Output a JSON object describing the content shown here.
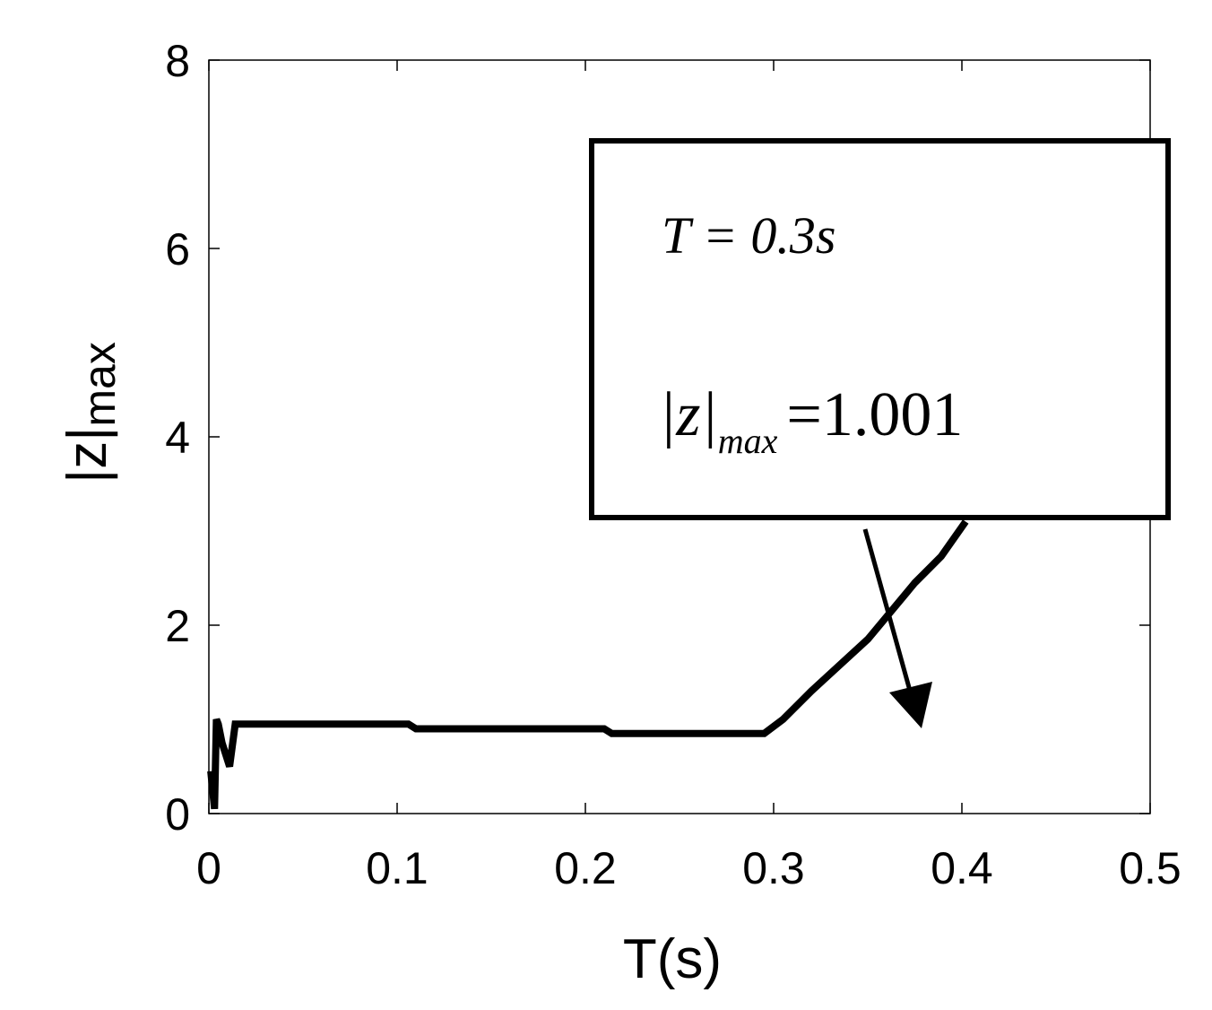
{
  "chart_data": {
    "type": "line",
    "xlabel": "T(s)",
    "ylabel": {
      "base": "|z|",
      "sub": "max"
    },
    "annotation": {
      "line1": "T = 0.3s",
      "line2": {
        "base": "|z|",
        "sub": "max",
        "rest": "=1.001"
      }
    },
    "xlim": [
      0,
      0.5
    ],
    "xticks": [
      0,
      0.1,
      0.2,
      0.3,
      0.4,
      0.5
    ],
    "ylim": [
      0,
      8
    ],
    "yticks": [
      0,
      2,
      4,
      6,
      8
    ],
    "series": [
      {
        "color": "#000000",
        "x": [
          0.001,
          0.003,
          0.004,
          0.005,
          0.007,
          0.011,
          0.014,
          0.106,
          0.11,
          0.21,
          0.214,
          0.295,
          0.305,
          0.32,
          0.35,
          0.375,
          0.389,
          0.402
        ],
        "values": [
          0.45,
          0.05,
          1.0,
          0.95,
          0.75,
          0.5,
          0.95,
          0.95,
          0.9,
          0.9,
          0.85,
          0.85,
          1.0,
          1.3,
          1.85,
          2.45,
          2.73,
          3.1
        ]
      }
    ]
  }
}
